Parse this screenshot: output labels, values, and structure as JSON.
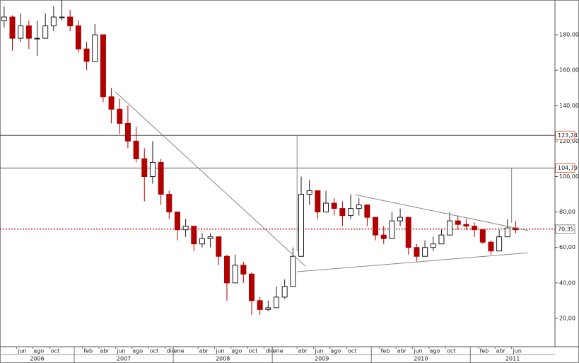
{
  "chart_data": {
    "type": "candlestick",
    "x": [
      "2006-04",
      "2006-05",
      "2006-06",
      "2006-07",
      "2006-08",
      "2006-09",
      "2006-10",
      "2006-11",
      "2006-12",
      "2007-01",
      "2007-02",
      "2007-03",
      "2007-04",
      "2007-05",
      "2007-06",
      "2007-07",
      "2007-08",
      "2007-09",
      "2007-10",
      "2007-11",
      "2007-12",
      "2008-01",
      "2008-02",
      "2008-03",
      "2008-04",
      "2008-05",
      "2008-06",
      "2008-07",
      "2008-08",
      "2008-09",
      "2008-10",
      "2008-11",
      "2008-12",
      "2009-01",
      "2009-02",
      "2009-03",
      "2009-04",
      "2009-05",
      "2009-06",
      "2009-07",
      "2009-08",
      "2009-09",
      "2009-10",
      "2009-11",
      "2009-12",
      "2010-01",
      "2010-02",
      "2010-03",
      "2010-04",
      "2010-05",
      "2010-06",
      "2010-07",
      "2010-08",
      "2010-09",
      "2010-10",
      "2010-11",
      "2010-12",
      "2011-01",
      "2011-02",
      "2011-03",
      "2011-04",
      "2011-05",
      "2011-06"
    ],
    "open": [
      188,
      190,
      178,
      185,
      178,
      178,
      185,
      190,
      190,
      185,
      172,
      165,
      180,
      145,
      138,
      130,
      120,
      110,
      100,
      108,
      90,
      80,
      70,
      72,
      62,
      65,
      66,
      55,
      40,
      50,
      45,
      30,
      25,
      26,
      32,
      38,
      55,
      90,
      92,
      80,
      85,
      82,
      78,
      82,
      84,
      77,
      67,
      65,
      75,
      77,
      60,
      55,
      60,
      62,
      67,
      75,
      73,
      72,
      70,
      63,
      58,
      66,
      71
    ],
    "high": [
      196,
      191,
      192,
      188,
      188,
      192,
      196,
      200,
      194,
      188,
      176,
      186,
      180,
      150,
      144,
      140,
      128,
      116,
      120,
      110,
      92,
      80,
      76,
      72,
      68,
      68,
      66,
      56,
      56,
      52,
      46,
      32,
      30,
      38,
      42,
      60,
      100,
      98,
      92,
      92,
      88,
      86,
      90,
      88,
      84,
      77,
      72,
      80,
      82,
      77,
      62,
      64,
      66,
      70,
      80,
      78,
      76,
      74,
      70,
      64,
      70,
      76,
      75
    ],
    "low": [
      184,
      171,
      176,
      172,
      168,
      178,
      182,
      188,
      182,
      170,
      160,
      165,
      142,
      130,
      124,
      116,
      108,
      86,
      96,
      84,
      76,
      64,
      66,
      58,
      60,
      60,
      50,
      30,
      40,
      40,
      22,
      22,
      24,
      26,
      31,
      38,
      55,
      84,
      76,
      80,
      78,
      72,
      76,
      78,
      72,
      64,
      62,
      65,
      72,
      56,
      52,
      55,
      58,
      62,
      67,
      70,
      70,
      66,
      62,
      56,
      58,
      66,
      68
    ],
    "close": [
      190,
      178,
      185,
      178,
      178,
      185,
      190,
      190,
      185,
      172,
      165,
      180,
      145,
      138,
      130,
      120,
      110,
      100,
      108,
      90,
      80,
      70,
      72,
      62,
      65,
      66,
      55,
      40,
      50,
      45,
      30,
      25,
      26,
      32,
      38,
      55,
      90,
      92,
      80,
      85,
      82,
      78,
      82,
      84,
      77,
      67,
      65,
      75,
      77,
      60,
      55,
      60,
      62,
      67,
      75,
      73,
      72,
      70,
      63,
      58,
      66,
      71,
      70
    ],
    "up_color": "#1a1a1a",
    "down_color": "#b00000",
    "xlim": [
      "2006-04",
      "2011-11"
    ],
    "ylim": [
      4,
      199.6
    ],
    "yticks": [
      {
        "value": 20,
        "label": "20,00"
      },
      {
        "value": 40,
        "label": "40,00"
      },
      {
        "value": 60,
        "label": "60,00"
      },
      {
        "value": 80,
        "label": "80,00"
      },
      {
        "value": 100,
        "label": "100,00"
      },
      {
        "value": 120,
        "label": "120,00"
      },
      {
        "value": 140,
        "label": "140,00"
      },
      {
        "value": 160,
        "label": "160,00"
      },
      {
        "value": 180,
        "label": "180,00"
      }
    ],
    "xticks": [
      {
        "value": "2006-06",
        "label": "jun"
      },
      {
        "value": "2006-08",
        "label": "ago"
      },
      {
        "value": "2006-10",
        "label": "oct"
      },
      {
        "value": "2007-02",
        "label": "feb"
      },
      {
        "value": "2007-04",
        "label": "abr"
      },
      {
        "value": "2007-06",
        "label": "jun"
      },
      {
        "value": "2007-08",
        "label": "ago"
      },
      {
        "value": "2007-10",
        "label": "oct"
      },
      {
        "value": "2007-12",
        "label": "dic"
      },
      {
        "value": "2008-01",
        "label": "ene"
      },
      {
        "value": "2008-04",
        "label": "abr"
      },
      {
        "value": "2008-06",
        "label": "jun"
      },
      {
        "value": "2008-08",
        "label": "ago"
      },
      {
        "value": "2008-10",
        "label": "oct"
      },
      {
        "value": "2008-12",
        "label": "dic"
      },
      {
        "value": "2009-01",
        "label": "ene"
      },
      {
        "value": "2009-04",
        "label": "abr"
      },
      {
        "value": "2009-06",
        "label": "jun"
      },
      {
        "value": "2009-08",
        "label": "ago"
      },
      {
        "value": "2009-10",
        "label": "oct"
      },
      {
        "value": "2010-02",
        "label": "feb"
      },
      {
        "value": "2010-04",
        "label": "abr"
      },
      {
        "value": "2010-06",
        "label": "jun"
      },
      {
        "value": "2010-08",
        "label": "ago"
      },
      {
        "value": "2010-10",
        "label": "oct"
      },
      {
        "value": "2011-02",
        "label": "feb"
      },
      {
        "value": "2011-04",
        "label": "abr"
      },
      {
        "value": "2011-06",
        "label": "jun"
      }
    ],
    "years": [
      "2006",
      "2007",
      "2008",
      "2009",
      "2010",
      "2011"
    ],
    "levels": [
      {
        "value": 123.24,
        "label": "123,24",
        "color": "#555",
        "box": "#e07050",
        "dash": false
      },
      {
        "value": 104.79,
        "label": "104,79",
        "color": "#555",
        "box": "#e07050",
        "dash": false
      },
      {
        "value": 70.35,
        "label": "70,35",
        "color": "#c00000",
        "box": "#888",
        "dash": true
      }
    ],
    "trendlines": [
      {
        "x": [
          "2007-06",
          "2009-05"
        ],
        "y": [
          147.7,
          49.5
        ]
      },
      {
        "x": [
          "2009-04",
          "2011-08"
        ],
        "y": [
          46.3,
          57
        ]
      },
      {
        "x": [
          "2009-11",
          "2011-08"
        ],
        "y": [
          89.8,
          69.5
        ]
      },
      {
        "x": [
          "2009-04",
          "2009-04"
        ],
        "y": [
          123.24,
          57.9
        ]
      },
      {
        "x": [
          "2011-06",
          "2011-06"
        ],
        "y": [
          104.79,
          73.9
        ]
      }
    ],
    "grid": false
  }
}
